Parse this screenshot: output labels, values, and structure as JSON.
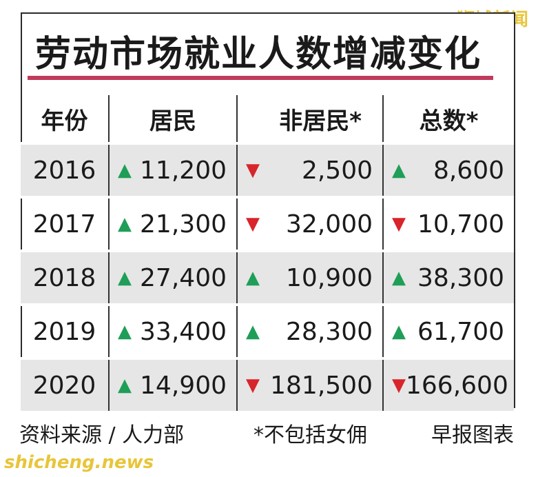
{
  "watermarks": {
    "top": "狮城新闻",
    "bottom": "shicheng.news"
  },
  "title": "劳动市场就业人数增减变化",
  "footer": {
    "source": "资料来源 / 人力部",
    "note": "*不包括女佣",
    "credit": "早报图表"
  },
  "colors": {
    "up": "#1f9e57",
    "down": "#d8242b",
    "title_rule": "#c13a5c",
    "row_shade": "#e6e6e6"
  },
  "chart_data": {
    "type": "table",
    "title": "劳动市场就业人数增减变化",
    "columns": [
      "年份",
      "居民",
      "非居民*",
      "总数*"
    ],
    "rows": [
      {
        "year": "2016",
        "resident": {
          "dir": "up",
          "value": "11,200"
        },
        "nonresident": {
          "dir": "down",
          "value": "2,500"
        },
        "total": {
          "dir": "up",
          "value": "8,600"
        }
      },
      {
        "year": "2017",
        "resident": {
          "dir": "up",
          "value": "21,300"
        },
        "nonresident": {
          "dir": "down",
          "value": "32,000"
        },
        "total": {
          "dir": "down",
          "value": "10,700"
        }
      },
      {
        "year": "2018",
        "resident": {
          "dir": "up",
          "value": "27,400"
        },
        "nonresident": {
          "dir": "up",
          "value": "10,900"
        },
        "total": {
          "dir": "up",
          "value": "38,300"
        }
      },
      {
        "year": "2019",
        "resident": {
          "dir": "up",
          "value": "33,400"
        },
        "nonresident": {
          "dir": "up",
          "value": "28,300"
        },
        "total": {
          "dir": "up",
          "value": "61,700"
        }
      },
      {
        "year": "2020",
        "resident": {
          "dir": "up",
          "value": "14,900"
        },
        "nonresident": {
          "dir": "down",
          "value": "181,500"
        },
        "total": {
          "dir": "down",
          "value": "166,600"
        }
      }
    ]
  }
}
